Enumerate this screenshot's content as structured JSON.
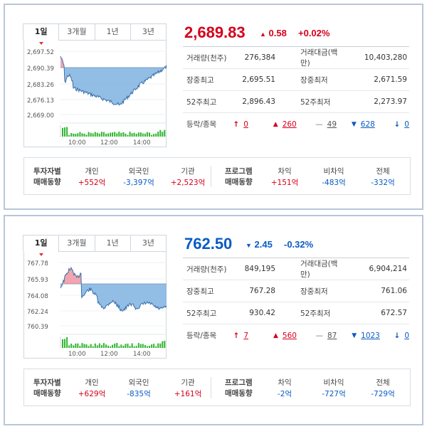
{
  "kospi": {
    "tabs": [
      "1일",
      "3개월",
      "1년",
      "3년"
    ],
    "value": "2,689.83",
    "change": "0.58",
    "change_pct": "+0.02%",
    "direction": "up",
    "chart": {
      "y_ticks": [
        "2,697.52",
        "2,690.39",
        "2,683.26",
        "2,676.13",
        "2,669.00"
      ],
      "x_ticks": [
        "10:00",
        "12:00",
        "14:00"
      ],
      "prev_close": 2689.25,
      "ylim": [
        2669.0,
        2697.52
      ]
    },
    "stats": [
      {
        "l1": "거래량(천주)",
        "v1": "276,384",
        "l2": "거래대금(백만)",
        "v2": "10,403,280"
      },
      {
        "l1": "장중최고",
        "v1": "2,695.51",
        "l2": "장중최저",
        "v2": "2,671.59"
      },
      {
        "l1": "52주최고",
        "v1": "2,896.43",
        "l2": "52주최저",
        "v2": "2,273.97"
      }
    ],
    "updown": {
      "label": "등락/종목",
      "upper": "0",
      "rise": "260",
      "flat": "49",
      "fall": "628",
      "lower": "0"
    },
    "investors": {
      "title1": "투자자별",
      "title2": "매매동향",
      "indiv_label": "개인",
      "indiv": "+552억",
      "foreign_label": "외국인",
      "foreign": "-3,397억",
      "inst_label": "기관",
      "inst": "+2,523억",
      "prog_title1": "프로그램",
      "prog_title2": "매매동향",
      "arb_label": "차익",
      "arb": "+151억",
      "nonarb_label": "비차익",
      "nonarb": "-483억",
      "total_label": "전체",
      "total": "-332억"
    }
  },
  "kosdaq": {
    "tabs": [
      "1일",
      "3개월",
      "1년",
      "3년"
    ],
    "value": "762.50",
    "change": "2.45",
    "change_pct": "-0.32%",
    "direction": "down",
    "chart": {
      "y_ticks": [
        "767.78",
        "765.93",
        "764.08",
        "762.24",
        "760.39"
      ],
      "x_ticks": [
        "10:00",
        "12:00",
        "14:00"
      ],
      "prev_close": 764.95,
      "ylim": [
        760.39,
        767.78
      ]
    },
    "stats": [
      {
        "l1": "거래량(천주)",
        "v1": "849,195",
        "l2": "거래대금(백만)",
        "v2": "6,904,214"
      },
      {
        "l1": "장중최고",
        "v1": "767.28",
        "l2": "장중최저",
        "v2": "761.06"
      },
      {
        "l1": "52주최고",
        "v1": "930.42",
        "l2": "52주최저",
        "v2": "672.57"
      }
    ],
    "updown": {
      "label": "등락/종목",
      "upper": "7",
      "rise": "560",
      "flat": "87",
      "fall": "1023",
      "lower": "0"
    },
    "investors": {
      "title1": "투자자별",
      "title2": "매매동향",
      "indiv_label": "개인",
      "indiv": "+629억",
      "foreign_label": "외국인",
      "foreign": "-835억",
      "inst_label": "기관",
      "inst": "+161억",
      "prog_title1": "프로그램",
      "prog_title2": "매매동향",
      "arb_label": "차익",
      "arb": "-2억",
      "nonarb_label": "비차익",
      "nonarb": "-727억",
      "total_label": "전체",
      "total": "-729억"
    }
  },
  "colors": {
    "up": "#d4001b",
    "down": "#0a5bc4",
    "area_down": "#7fb2e0",
    "area_up": "#f29aa6",
    "volume": "#2fb52f"
  }
}
